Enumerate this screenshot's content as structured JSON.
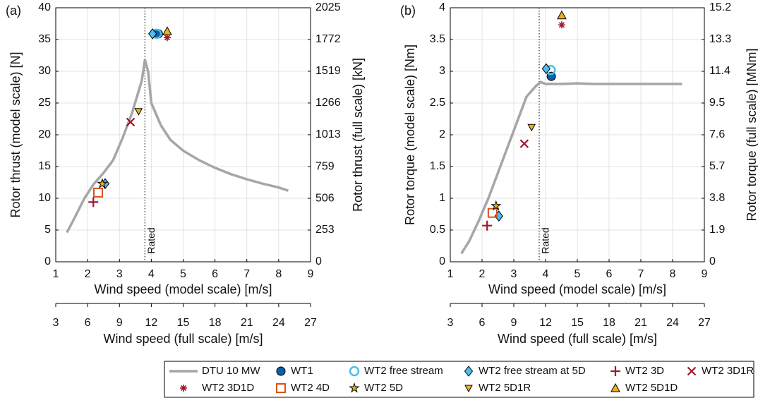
{
  "chart_data": [
    {
      "type": "scatter",
      "panel_label": "(a)",
      "xlabel": "Wind speed (model scale) [m/s]",
      "x2label": "Wind speed (full scale) [m/s]",
      "ylabel": "Rotor thrust (model scale) [N]",
      "y2label": "Rotor thrust (full scale) [kN]",
      "xlim": [
        1,
        9
      ],
      "xticks": [
        1,
        2,
        3,
        4,
        5,
        6,
        7,
        8,
        9
      ],
      "x2lim": [
        3,
        27
      ],
      "x2ticks": [
        3,
        6,
        9,
        12,
        15,
        18,
        21,
        24,
        27
      ],
      "ylim": [
        0,
        40
      ],
      "yticks": [
        0,
        5,
        10,
        15,
        20,
        25,
        30,
        35,
        40
      ],
      "y2lim": [
        0,
        2025
      ],
      "y2ticks": [
        0,
        253,
        506,
        759,
        1013,
        1266,
        1519,
        1772,
        2025
      ],
      "grid": true,
      "rated": {
        "x": 3.8,
        "label": "Rated"
      },
      "series": [
        {
          "name": "DTU 10 MW",
          "marker": "line",
          "color": "#a6a6a6",
          "x": [
            1.35,
            1.6,
            1.9,
            2.2,
            2.5,
            2.8,
            3.1,
            3.4,
            3.7,
            3.8,
            3.9,
            4.0,
            4.3,
            4.6,
            5.0,
            5.5,
            6.0,
            6.5,
            7.0,
            7.5,
            8.0,
            8.3
          ],
          "values": [
            4.6,
            7,
            10,
            12.3,
            14,
            16,
            19.5,
            23.5,
            28.5,
            31.8,
            30,
            25,
            21.5,
            19.2,
            17.5,
            16,
            14.8,
            13.8,
            13,
            12.3,
            11.7,
            11.2
          ]
        },
        {
          "name": "WT1",
          "marker": "circle",
          "color": "#0b5fa5",
          "x": [
            4.22
          ],
          "values": [
            35.9
          ]
        },
        {
          "name": "WT2 free stream",
          "marker": "open-circle",
          "color": "#4dbeee",
          "x": [
            4.17
          ],
          "values": [
            35.9
          ]
        },
        {
          "name": "WT2 free stream at 5D",
          "marker": "diamond",
          "color": "#4dbeee",
          "x": [
            4.04,
            2.55
          ],
          "values": [
            35.9,
            12.3
          ]
        },
        {
          "name": "WT2 3D",
          "marker": "plus",
          "color": "#a2142f",
          "x": [
            2.18
          ],
          "values": [
            9.4
          ]
        },
        {
          "name": "WT2 3D1R",
          "marker": "cross",
          "color": "#a2142f",
          "x": [
            3.35
          ],
          "values": [
            22
          ]
        },
        {
          "name": "WT2 3D1D",
          "marker": "asterisk",
          "color": "#a2142f",
          "x": [
            4.5
          ],
          "values": [
            35.3
          ]
        },
        {
          "name": "WT2 4D",
          "marker": "open-square",
          "color": "#d95319",
          "x": [
            2.33
          ],
          "values": [
            10.9
          ]
        },
        {
          "name": "WT2 5D",
          "marker": "star",
          "color": "#edb120",
          "x": [
            2.46
          ],
          "values": [
            12.3
          ]
        },
        {
          "name": "WT2 5D1R",
          "marker": "triangle-down",
          "color": "#edb120",
          "x": [
            3.6
          ],
          "values": [
            23.7
          ]
        },
        {
          "name": "WT2 5D1D",
          "marker": "triangle-up",
          "color": "#edb120",
          "x": [
            4.5
          ],
          "values": [
            36.3
          ]
        }
      ]
    },
    {
      "type": "scatter",
      "panel_label": "(b)",
      "xlabel": "Wind speed (model scale) [m/s]",
      "x2label": "Wind speed (full scale) [m/s]",
      "ylabel": "Rotor torque (model scale) [Nm]",
      "y2label": "Rotor torque (full scale) [MNm]",
      "xlim": [
        1,
        9
      ],
      "xticks": [
        1,
        2,
        3,
        4,
        5,
        6,
        7,
        8,
        9
      ],
      "x2lim": [
        3,
        27
      ],
      "x2ticks": [
        3,
        6,
        9,
        12,
        15,
        18,
        21,
        24,
        27
      ],
      "ylim": [
        0,
        4
      ],
      "yticks": [
        0,
        0.5,
        1,
        1.5,
        2,
        2.5,
        3,
        3.5,
        4
      ],
      "y2lim": [
        0,
        15.2
      ],
      "y2ticks": [
        0,
        1.9,
        3.8,
        5.7,
        7.6,
        9.5,
        11.4,
        13.3,
        15.2
      ],
      "grid": true,
      "rated": {
        "x": 3.8,
        "label": "Rated"
      },
      "series": [
        {
          "marker": "line",
          "color": "#a6a6a6",
          "x": [
            1.35,
            1.6,
            1.9,
            2.2,
            2.5,
            2.8,
            3.1,
            3.4,
            3.7,
            3.85,
            4.0,
            4.5,
            5.0,
            5.5,
            6.0,
            6.5,
            7.0,
            7.5,
            8.0,
            8.3
          ],
          "values": [
            0.13,
            0.33,
            0.65,
            1.0,
            1.4,
            1.8,
            2.2,
            2.6,
            2.77,
            2.83,
            2.8,
            2.8,
            2.81,
            2.8,
            2.8,
            2.8,
            2.8,
            2.8,
            2.8,
            2.8
          ]
        },
        {
          "marker": "circle",
          "color": "#0b5fa5",
          "x": [
            4.18
          ],
          "values": [
            2.92
          ]
        },
        {
          "marker": "open-circle",
          "color": "#4dbeee",
          "x": [
            4.16
          ],
          "values": [
            3.02
          ]
        },
        {
          "marker": "diamond",
          "color": "#4dbeee",
          "x": [
            4.02,
            2.53
          ],
          "values": [
            3.04,
            0.72
          ]
        },
        {
          "marker": "plus",
          "color": "#a2142f",
          "x": [
            2.16
          ],
          "values": [
            0.57
          ]
        },
        {
          "marker": "cross",
          "color": "#a2142f",
          "x": [
            3.33
          ],
          "values": [
            1.86
          ]
        },
        {
          "marker": "asterisk",
          "color": "#a2142f",
          "x": [
            4.51
          ],
          "values": [
            3.73
          ]
        },
        {
          "marker": "open-square",
          "color": "#d95319",
          "x": [
            2.33
          ],
          "values": [
            0.77
          ]
        },
        {
          "marker": "star",
          "color": "#edb120",
          "x": [
            2.44
          ],
          "values": [
            0.88
          ]
        },
        {
          "marker": "triangle-down",
          "color": "#edb120",
          "x": [
            3.56
          ],
          "values": [
            2.12
          ]
        },
        {
          "marker": "triangle-up",
          "color": "#edb120",
          "x": [
            4.51
          ],
          "values": [
            3.88
          ]
        }
      ]
    }
  ]
}
